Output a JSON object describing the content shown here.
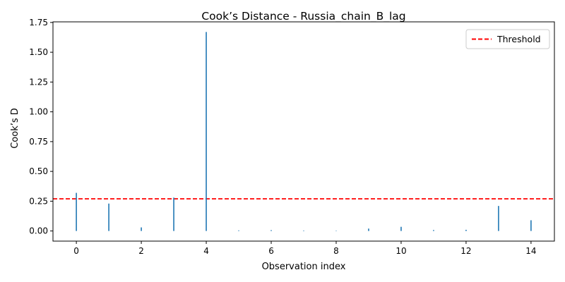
{
  "chart_data": {
    "type": "stem",
    "title": "Cook’s Distance - Russia_chain_B_lag",
    "xlabel": "Observation index",
    "ylabel": "Cook’s D",
    "x": [
      0,
      1,
      2,
      3,
      4,
      5,
      6,
      7,
      8,
      9,
      10,
      11,
      12,
      13,
      14
    ],
    "values": [
      0.32,
      0.23,
      0.03,
      0.28,
      1.67,
      0.005,
      0.007,
      0.004,
      0.003,
      0.02,
      0.035,
      0.008,
      0.01,
      0.21,
      0.09
    ],
    "xlim": [
      -0.72,
      14.72
    ],
    "ylim": [
      -0.085,
      1.755
    ],
    "x_ticks": [
      0,
      2,
      4,
      6,
      8,
      10,
      12,
      14
    ],
    "y_ticks": [
      0.0,
      0.25,
      0.5,
      0.75,
      1.0,
      1.25,
      1.5,
      1.75
    ],
    "x_tick_labels": [
      "0",
      "2",
      "4",
      "6",
      "8",
      "10",
      "12",
      "14"
    ],
    "y_tick_labels": [
      "0.00",
      "0.25",
      "0.50",
      "0.75",
      "1.00",
      "1.25",
      "1.50",
      "1.75"
    ],
    "threshold": {
      "name": "Threshold",
      "value": 0.27,
      "color": "#ff0000",
      "style": "dashed"
    },
    "stem_color": "#1f77b4",
    "grid": false,
    "legend": {
      "placement": "top-right",
      "entries": [
        "Threshold"
      ]
    }
  }
}
